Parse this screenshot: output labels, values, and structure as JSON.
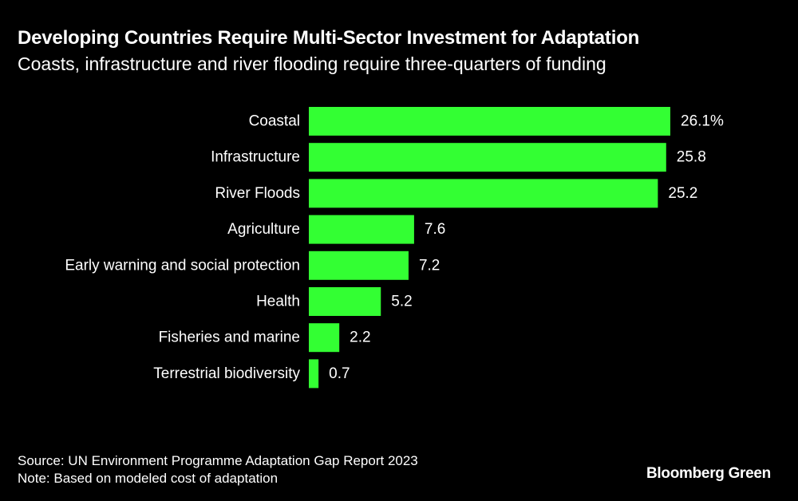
{
  "header": {
    "title": "Developing Countries Require Multi-Sector Investment for Adaptation",
    "subtitle": "Coasts, infrastructure and river flooding require three-quarters of funding"
  },
  "chart_data": {
    "type": "bar",
    "orientation": "horizontal",
    "categories": [
      "Coastal",
      "Infrastructure",
      "River Floods",
      "Agriculture",
      "Early warning and social protection",
      "Health",
      "Fisheries and marine",
      "Terrestrial biodiversity"
    ],
    "values": [
      26.1,
      25.8,
      25.2,
      7.6,
      7.2,
      5.2,
      2.2,
      0.7
    ],
    "value_labels": [
      "26.1%",
      "25.8",
      "25.2",
      "7.6",
      "7.2",
      "5.2",
      "2.2",
      "0.7"
    ],
    "bar_color": "#33ff33",
    "xlim": [
      0,
      26.1
    ],
    "grid": false,
    "legend": "none"
  },
  "footer": {
    "source": "Source: UN Environment Programme Adaptation Gap Report 2023",
    "note": "Note: Based on modeled cost of adaptation",
    "brand": "Bloomberg Green"
  }
}
